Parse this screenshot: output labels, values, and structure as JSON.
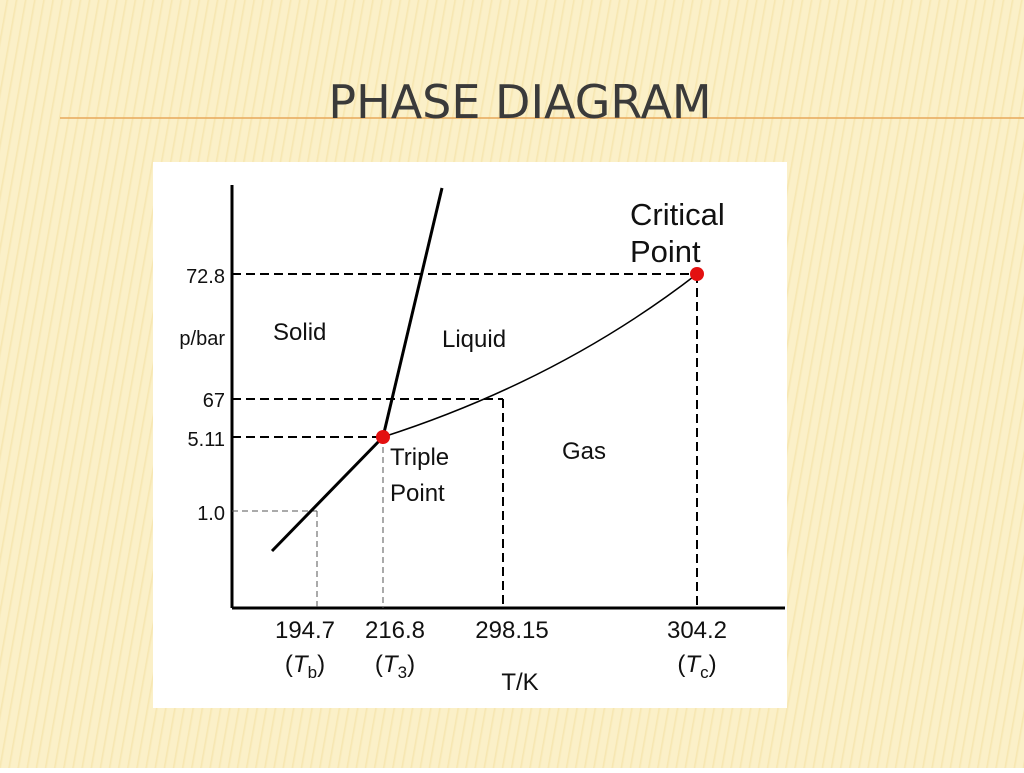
{
  "title": "PHASE DIAGRAM",
  "diagram": {
    "y_axis_label": "p/bar",
    "y_ticks": [
      "72.8",
      "67",
      "5.11",
      "1.0"
    ],
    "x_ticks": [
      {
        "value": "194.7",
        "symbol": [
          "(",
          "T",
          "b",
          ")"
        ]
      },
      {
        "value": "216.8",
        "symbol": [
          "(",
          "T",
          "3",
          ")"
        ]
      },
      {
        "value": "298.15",
        "symbol": null
      },
      {
        "value": "304.2",
        "symbol": [
          "(",
          "T",
          "c",
          ")"
        ]
      }
    ],
    "x_axis_label": "T/K",
    "regions": [
      "Solid",
      "Liquid",
      "Gas"
    ],
    "triple_point": [
      "Triple",
      "Point"
    ],
    "critical_point": [
      "Critical",
      "Point"
    ]
  }
}
